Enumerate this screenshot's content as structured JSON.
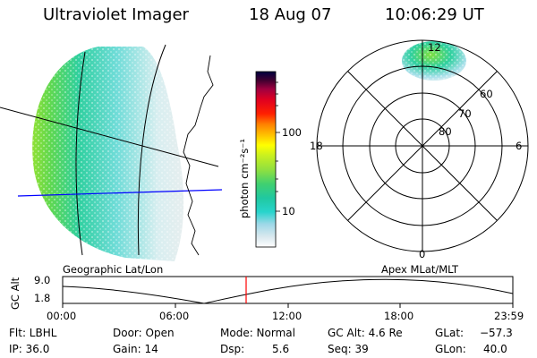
{
  "header": {
    "instrument": "Ultraviolet Imager",
    "date": "18 Aug 07",
    "time": "10:06:29 UT"
  },
  "colorbar": {
    "label": "photon cm⁻²s⁻¹",
    "ticks": [
      "100",
      "10"
    ],
    "colors": [
      "#ffffff",
      "#d8e8ee",
      "#9ed8e8",
      "#28d4cc",
      "#20c8a0",
      "#40d070",
      "#90e040",
      "#c8f020",
      "#ffff00",
      "#ffc000",
      "#ff8000",
      "#ff2000",
      "#e00020",
      "#a00040",
      "#400030",
      "#000040"
    ]
  },
  "polar": {
    "mlt_labels": {
      "top": "12",
      "right": "6",
      "bottom": "0",
      "left": "18"
    },
    "lat_labels": [
      "60",
      "70",
      "80"
    ]
  },
  "strip": {
    "ylabel": "GC Alt",
    "ymax": "9.0",
    "ymin": "1.8",
    "left_label": "Geographic Lat/Lon",
    "right_label": "Apex MLat/MLT",
    "xticks": [
      "00:00",
      "06:00",
      "12:00",
      "18:00",
      "23:59"
    ],
    "current_time_color": "#ff0000"
  },
  "footer": {
    "row1": {
      "flt": "Flt: LBHL",
      "door": "Door: Open",
      "mode": "Mode: Normal",
      "gcalt": "GC Alt: 4.6 Re",
      "glat_label": "GLat:",
      "glat_value": "−57.3"
    },
    "row2": {
      "ip": "IP: 36.0",
      "gain": "Gain: 14",
      "dsp_label": "Dsp:",
      "dsp_value": "5.6",
      "seq": "Seq: 39",
      "glon_label": "GLon:",
      "glon_value": "40.0"
    }
  }
}
